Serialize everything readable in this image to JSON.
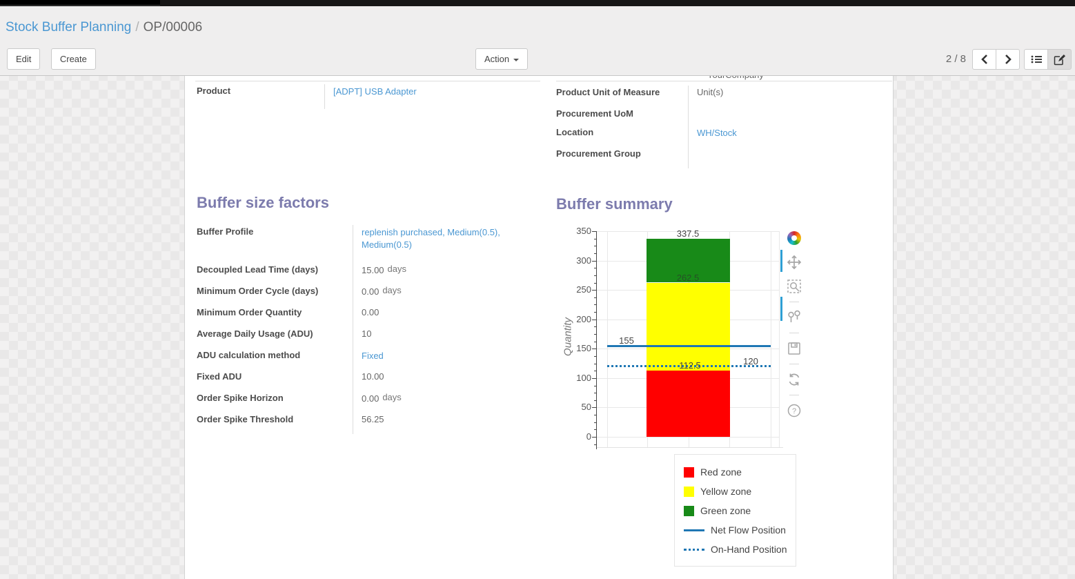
{
  "breadcrumb": {
    "parent": "Stock Buffer Planning",
    "separator": "/",
    "current": "OP/00006"
  },
  "toolbar": {
    "edit_label": "Edit",
    "create_label": "Create",
    "action_label": "Action"
  },
  "pager": {
    "counter": "2 / 8"
  },
  "icons": {
    "pager_prev": "chevron-left-icon",
    "pager_next": "chevron-right-icon",
    "view_list": "list-view-icon",
    "view_form": "form-edit-icon",
    "modebar": [
      "plotly-logo",
      "pan-icon",
      "box-zoom-icon",
      "hover-compare-icon",
      "save-icon",
      "reset-axes-icon",
      "help-icon"
    ]
  },
  "form": {
    "clipped_top_value": "YourCompany",
    "product": {
      "label": "Product",
      "value": "[ADPT] USB Adapter"
    },
    "right_fields": [
      {
        "label": "Product Unit of Measure",
        "value": "Unit(s)"
      },
      {
        "label": "Procurement UoM",
        "value": ""
      },
      {
        "label": "Location",
        "value": "WH/Stock"
      },
      {
        "label": "Procurement Group",
        "value": ""
      }
    ],
    "sections": {
      "factors": "Buffer size factors",
      "summary": "Buffer summary"
    },
    "factors_fields": [
      {
        "label": "Buffer Profile",
        "value": "replenish purchased, Medium(0.5), Medium(0.5)",
        "suffix": ""
      },
      {
        "label": "Decoupled Lead Time (days)",
        "value": "15.00",
        "suffix": "days"
      },
      {
        "label": "Minimum Order Cycle (days)",
        "value": "0.00",
        "suffix": "days"
      },
      {
        "label": "Minimum Order Quantity",
        "value": "0.00",
        "suffix": ""
      },
      {
        "label": "Average Daily Usage (ADU)",
        "value": "10",
        "suffix": ""
      },
      {
        "label": "ADU calculation method",
        "value": "Fixed",
        "suffix": ""
      },
      {
        "label": "Fixed ADU",
        "value": "10.00",
        "suffix": ""
      },
      {
        "label": "Order Spike Horizon",
        "value": "0.00",
        "suffix": "days"
      },
      {
        "label": "Order Spike Threshold",
        "value": "56.25",
        "suffix": ""
      }
    ]
  },
  "chart_data": {
    "type": "bar",
    "title": "Buffer summary",
    "ylabel": "Quantity",
    "ylim": [
      0,
      350
    ],
    "yticks": [
      0,
      50,
      100,
      150,
      200,
      250,
      300,
      350
    ],
    "grid": true,
    "zones": [
      {
        "name": "Red zone",
        "from": 0,
        "to": 112.5,
        "color": "#ff0000"
      },
      {
        "name": "Yellow zone",
        "from": 112.5,
        "to": 262.5,
        "color": "#ffff00"
      },
      {
        "name": "Green zone",
        "from": 262.5,
        "to": 337.5,
        "color": "#188a18"
      }
    ],
    "lines": [
      {
        "name": "Net Flow Position",
        "value": 155,
        "style": "solid",
        "color": "#1f77b4"
      },
      {
        "name": "On-Hand Position",
        "value": 120,
        "style": "dotted",
        "color": "#1f77b4"
      }
    ],
    "annotations": [
      {
        "text": "337.5",
        "v": 337.5,
        "x": 132,
        "dy": -15,
        "color": "#444444"
      },
      {
        "text": "262.5",
        "v": 262.5,
        "x": 132,
        "dy": -15,
        "color": "rgba(45,60,45,0.72)"
      },
      {
        "text": "155",
        "v": 155,
        "x": 43,
        "dy": -15,
        "color": "#444444"
      },
      {
        "text": "112.5",
        "v": 112.5,
        "x": 135,
        "dy": -15,
        "color": "#444444"
      },
      {
        "text": "120",
        "v": 120,
        "x": 223,
        "dy": -15,
        "color": "#444444"
      }
    ],
    "legend": [
      "Red zone",
      "Yellow zone",
      "Green zone",
      "Net Flow Position",
      "On-Hand Position"
    ],
    "legend_position": "below-right"
  },
  "colors": {
    "link": "#4a97d2",
    "section_heading": "#7c7bad",
    "plotly_blue": "#1f77b4",
    "red_zone": "#ff0000",
    "yellow_zone": "#ffff00",
    "green_zone": "#188a18"
  }
}
